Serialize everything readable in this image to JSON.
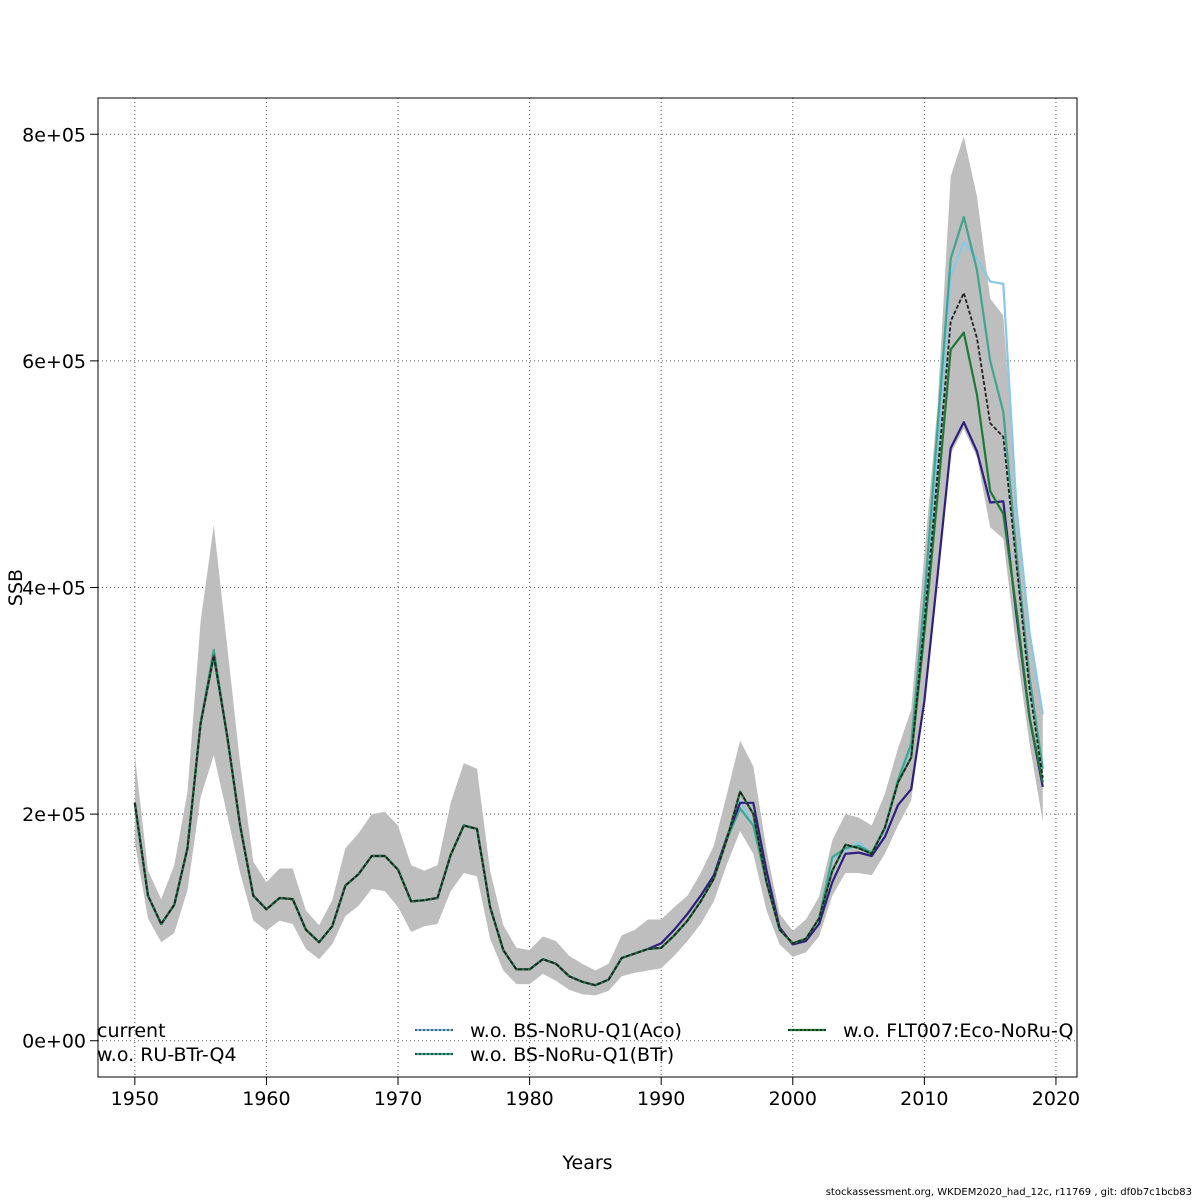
{
  "chart_data": {
    "type": "line",
    "title": "",
    "xlabel": "Years",
    "ylabel": "SSB",
    "xlim": [
      1947.2,
      2021.6
    ],
    "ylim": [
      -32000,
      832000
    ],
    "grid": true,
    "x_ticks": [
      1950,
      1960,
      1970,
      1980,
      1990,
      2000,
      2010,
      2020
    ],
    "x_tick_labels": [
      "1950",
      "1960",
      "1970",
      "1980",
      "1990",
      "2000",
      "2010",
      "2020"
    ],
    "y_ticks": [
      0,
      200000,
      400000,
      600000,
      800000
    ],
    "y_tick_labels": [
      "0e+00",
      "2e+05",
      "4e+05",
      "6e+05",
      "8e+05"
    ],
    "band": {
      "color": "#bebebe",
      "upper": [
        [
          1950,
          252000
        ],
        [
          1951,
          150000
        ],
        [
          1952,
          125000
        ],
        [
          1953,
          155000
        ],
        [
          1954,
          220000
        ],
        [
          1955,
          370000
        ],
        [
          1956,
          455000
        ],
        [
          1957,
          350000
        ],
        [
          1958,
          245000
        ],
        [
          1959,
          158000
        ],
        [
          1960,
          140000
        ],
        [
          1961,
          152000
        ],
        [
          1962,
          152000
        ],
        [
          1963,
          115000
        ],
        [
          1964,
          102000
        ],
        [
          1965,
          124000
        ],
        [
          1966,
          170000
        ],
        [
          1967,
          183000
        ],
        [
          1968,
          200000
        ],
        [
          1969,
          202000
        ],
        [
          1970,
          190000
        ],
        [
          1971,
          155000
        ],
        [
          1972,
          150000
        ],
        [
          1973,
          155000
        ],
        [
          1974,
          210000
        ],
        [
          1975,
          245000
        ],
        [
          1976,
          240000
        ],
        [
          1977,
          150000
        ],
        [
          1978,
          102000
        ],
        [
          1979,
          82000
        ],
        [
          1980,
          80000
        ],
        [
          1981,
          92000
        ],
        [
          1982,
          88000
        ],
        [
          1983,
          75000
        ],
        [
          1984,
          68000
        ],
        [
          1985,
          62000
        ],
        [
          1986,
          68000
        ],
        [
          1987,
          93000
        ],
        [
          1988,
          98000
        ],
        [
          1989,
          107000
        ],
        [
          1990,
          107000
        ],
        [
          1991,
          118000
        ],
        [
          1992,
          128000
        ],
        [
          1993,
          148000
        ],
        [
          1994,
          172000
        ],
        [
          1995,
          218000
        ],
        [
          1996,
          265000
        ],
        [
          1997,
          242000
        ],
        [
          1998,
          168000
        ],
        [
          1999,
          112000
        ],
        [
          2000,
          97000
        ],
        [
          2001,
          107000
        ],
        [
          2002,
          127000
        ],
        [
          2003,
          177000
        ],
        [
          2004,
          200000
        ],
        [
          2005,
          197000
        ],
        [
          2006,
          190000
        ],
        [
          2007,
          218000
        ],
        [
          2008,
          258000
        ],
        [
          2009,
          292000
        ],
        [
          2010,
          430000
        ],
        [
          2011,
          560000
        ],
        [
          2012,
          763000
        ],
        [
          2013,
          798000
        ],
        [
          2014,
          745000
        ],
        [
          2015,
          655000
        ],
        [
          2016,
          640000
        ],
        [
          2017,
          480000
        ],
        [
          2018,
          355000
        ],
        [
          2019,
          292000
        ]
      ],
      "lower": [
        [
          1950,
          175000
        ],
        [
          1951,
          108000
        ],
        [
          1952,
          87000
        ],
        [
          1953,
          95000
        ],
        [
          1954,
          133000
        ],
        [
          1955,
          215000
        ],
        [
          1956,
          252000
        ],
        [
          1957,
          200000
        ],
        [
          1958,
          148000
        ],
        [
          1959,
          106000
        ],
        [
          1960,
          97000
        ],
        [
          1961,
          106000
        ],
        [
          1962,
          103000
        ],
        [
          1963,
          81000
        ],
        [
          1964,
          72000
        ],
        [
          1965,
          85000
        ],
        [
          1966,
          110000
        ],
        [
          1967,
          119000
        ],
        [
          1968,
          134000
        ],
        [
          1969,
          132000
        ],
        [
          1970,
          118000
        ],
        [
          1971,
          96000
        ],
        [
          1972,
          101000
        ],
        [
          1973,
          103000
        ],
        [
          1974,
          132000
        ],
        [
          1975,
          148000
        ],
        [
          1976,
          145000
        ],
        [
          1977,
          90000
        ],
        [
          1978,
          62000
        ],
        [
          1979,
          50000
        ],
        [
          1980,
          50000
        ],
        [
          1981,
          59000
        ],
        [
          1982,
          53000
        ],
        [
          1983,
          45000
        ],
        [
          1984,
          41000
        ],
        [
          1985,
          40000
        ],
        [
          1986,
          44000
        ],
        [
          1987,
          57000
        ],
        [
          1988,
          60000
        ],
        [
          1989,
          62000
        ],
        [
          1990,
          64000
        ],
        [
          1991,
          75000
        ],
        [
          1992,
          88000
        ],
        [
          1993,
          103000
        ],
        [
          1994,
          123000
        ],
        [
          1995,
          156000
        ],
        [
          1996,
          185000
        ],
        [
          1997,
          165000
        ],
        [
          1998,
          115000
        ],
        [
          1999,
          85000
        ],
        [
          2000,
          74000
        ],
        [
          2001,
          78000
        ],
        [
          2002,
          92000
        ],
        [
          2003,
          128000
        ],
        [
          2004,
          148000
        ],
        [
          2005,
          148000
        ],
        [
          2006,
          146000
        ],
        [
          2007,
          165000
        ],
        [
          2008,
          190000
        ],
        [
          2009,
          212000
        ],
        [
          2010,
          300000
        ],
        [
          2011,
          410000
        ],
        [
          2012,
          518000
        ],
        [
          2013,
          540000
        ],
        [
          2014,
          515000
        ],
        [
          2015,
          453000
        ],
        [
          2016,
          443000
        ],
        [
          2017,
          345000
        ],
        [
          2018,
          262000
        ],
        [
          2019,
          193000
        ]
      ]
    },
    "years": [
      1950,
      1951,
      1952,
      1953,
      1954,
      1955,
      1956,
      1957,
      1958,
      1959,
      1960,
      1961,
      1962,
      1963,
      1964,
      1965,
      1966,
      1967,
      1968,
      1969,
      1970,
      1971,
      1972,
      1973,
      1974,
      1975,
      1976,
      1977,
      1978,
      1979,
      1980,
      1981,
      1982,
      1983,
      1984,
      1985,
      1986,
      1987,
      1988,
      1989,
      1990,
      1991,
      1992,
      1993,
      1994,
      1995,
      1996,
      1997,
      1998,
      1999,
      2000,
      2001,
      2002,
      2003,
      2004,
      2005,
      2006,
      2007,
      2008,
      2009,
      2010,
      2011,
      2012,
      2013,
      2014,
      2015,
      2016,
      2017,
      2018,
      2019
    ],
    "base": [
      210000,
      128000,
      103000,
      120000,
      170000,
      280000,
      340000,
      270000,
      190000,
      128000,
      116000,
      126000,
      125000,
      98000,
      87000,
      101000,
      137000,
      147000,
      163000,
      163000,
      151000,
      123000,
      124000,
      126000,
      164000,
      190000,
      187000,
      118000,
      80000,
      63000,
      63000,
      72000,
      68000,
      57000,
      52000,
      49000,
      54000,
      73000,
      77000,
      81000,
      82000,
      93000,
      106000,
      123000,
      143000,
      178000,
      220000,
      200000,
      140000,
      98000,
      86000,
      90000,
      108000,
      150000,
      173000,
      170000,
      165000,
      188000,
      228000,
      250000,
      360000,
      480000,
      610000,
      625000,
      570000,
      485000,
      465000,
      380000,
      285000,
      228000
    ],
    "series": [
      {
        "name": "current",
        "color": "#000000",
        "dashed": false,
        "overrides": {
          "2010": 370000,
          "2011": 500000,
          "2012": 635000,
          "2013": 660000,
          "2014": 620000,
          "2015": 545000,
          "2016": 533000,
          "2017": 420000,
          "2018": 310000,
          "2019": 232000
        }
      },
      {
        "name": "w.o. RU-BTr-Q4",
        "color": "#2e1f7f",
        "dashed": false,
        "overrides": {
          "1990": 86000,
          "1991": 98000,
          "1992": 112000,
          "1993": 128000,
          "1994": 146000,
          "1995": 180000,
          "1996": 210000,
          "1997": 210000,
          "1998": 150000,
          "1999": 100000,
          "2000": 85000,
          "2001": 88000,
          "2002": 103000,
          "2003": 140000,
          "2004": 165000,
          "2005": 166000,
          "2006": 163000,
          "2007": 180000,
          "2008": 208000,
          "2009": 222000,
          "2010": 300000,
          "2011": 410000,
          "2012": 523000,
          "2013": 546000,
          "2014": 520000,
          "2015": 475000,
          "2016": 476000,
          "2017": 375000,
          "2018": 285000,
          "2019": 224000
        }
      },
      {
        "name": "w.o. BS-NoRU-Q1(Aco)",
        "color": "#86c8e8",
        "dashed": false,
        "overrides": {
          "1996": 212000,
          "1997": 190000,
          "2003": 160000,
          "2004": 168000,
          "2005": 175000,
          "2006": 165000,
          "2007": 186000,
          "2008": 230000,
          "2009": 258000,
          "2010": 380000,
          "2011": 520000,
          "2012": 675000,
          "2013": 705000,
          "2014": 690000,
          "2015": 670000,
          "2016": 668000,
          "2017": 470000,
          "2018": 360000,
          "2019": 288000
        }
      },
      {
        "name": "w.o. BS-NoRu-Q1(BTr)",
        "color": "#3ea58f",
        "dashed": false,
        "overrides": {
          "1956": 345000,
          "1996": 205000,
          "1997": 190000,
          "2003": 162000,
          "2004": 170000,
          "2005": 172000,
          "2006": 166000,
          "2007": 188000,
          "2008": 230000,
          "2009": 262000,
          "2010": 390000,
          "2011": 540000,
          "2012": 690000,
          "2013": 727000,
          "2014": 680000,
          "2015": 600000,
          "2016": 555000,
          "2017": 430000,
          "2018": 320000,
          "2019": 240000
        }
      },
      {
        "name": "w.o. FLT007:Eco-NoRu-Q",
        "color": "#1b7a36",
        "dashed": false,
        "overrides": {}
      }
    ],
    "legend": {
      "placement": "bottom",
      "entries": [
        "current",
        "w.o. RU-BTr-Q4",
        "w.o. BS-NoRU-Q1(Aco)",
        "w.o. BS-NoRu-Q1(BTr)",
        "w.o. FLT007:Eco-NoRu-Q"
      ]
    }
  },
  "footer": "stockassessment.org, WKDEM2020_had_12c, r11769 , git: df0b7c1bcb83"
}
